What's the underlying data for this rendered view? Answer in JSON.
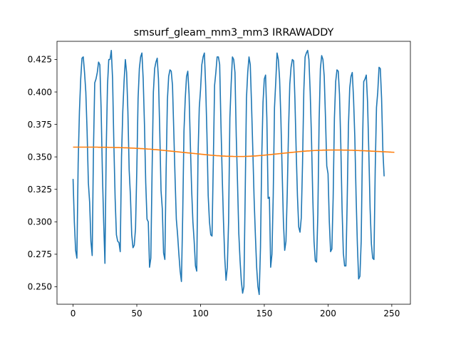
{
  "chart_data": {
    "type": "line",
    "title": "smsurf_gleam_mm3_mm3 IRRAWADDY",
    "xlabel": "",
    "ylabel": "",
    "xlim": [
      -12.6,
      264.6
    ],
    "ylim": [
      0.2365,
      0.439
    ],
    "grid": false,
    "x_ticks": [
      0,
      50,
      100,
      150,
      200,
      250
    ],
    "x_tick_labels": [
      "0",
      "50",
      "100",
      "150",
      "200",
      "250"
    ],
    "y_ticks": [
      0.25,
      0.275,
      0.3,
      0.325,
      0.35,
      0.375,
      0.4,
      0.425
    ],
    "y_tick_labels": [
      "0.250",
      "0.275",
      "0.300",
      "0.325",
      "0.350",
      "0.375",
      "0.400",
      "0.425"
    ],
    "colors": {
      "series_1": "#1f77b4",
      "series_2": "#ff7f0e"
    },
    "series": [
      {
        "values": [
          0.333,
          0.3,
          0.278,
          0.272,
          0.345,
          0.385,
          0.41,
          0.426,
          0.427,
          0.415,
          0.4,
          0.37,
          0.33,
          0.315,
          0.285,
          0.274,
          0.355,
          0.407,
          0.41,
          0.415,
          0.423,
          0.421,
          0.387,
          0.338,
          0.3,
          0.268,
          0.355,
          0.405,
          0.425,
          0.425,
          0.432,
          0.41,
          0.36,
          0.318,
          0.29,
          0.285,
          0.284,
          0.277,
          0.35,
          0.385,
          0.408,
          0.425,
          0.415,
          0.385,
          0.34,
          0.32,
          0.29,
          0.28,
          0.282,
          0.295,
          0.34,
          0.395,
          0.418,
          0.427,
          0.43,
          0.41,
          0.375,
          0.33,
          0.302,
          0.3,
          0.265,
          0.272,
          0.34,
          0.4,
          0.418,
          0.423,
          0.426,
          0.41,
          0.37,
          0.324,
          0.31,
          0.276,
          0.271,
          0.34,
          0.394,
          0.412,
          0.417,
          0.416,
          0.405,
          0.37,
          0.334,
          0.302,
          0.29,
          0.275,
          0.262,
          0.254,
          0.305,
          0.37,
          0.395,
          0.412,
          0.416,
          0.398,
          0.36,
          0.325,
          0.3,
          0.285,
          0.266,
          0.262,
          0.35,
          0.388,
          0.402,
          0.421,
          0.427,
          0.43,
          0.405,
          0.368,
          0.32,
          0.3,
          0.29,
          0.289,
          0.345,
          0.405,
          0.415,
          0.427,
          0.427,
          0.421,
          0.375,
          0.335,
          0.3,
          0.272,
          0.255,
          0.265,
          0.3,
          0.38,
          0.406,
          0.427,
          0.425,
          0.415,
          0.366,
          0.33,
          0.291,
          0.27,
          0.254,
          0.245,
          0.25,
          0.32,
          0.395,
          0.415,
          0.427,
          0.421,
          0.39,
          0.355,
          0.318,
          0.29,
          0.265,
          0.25,
          0.244,
          0.28,
          0.35,
          0.392,
          0.41,
          0.413,
          0.38,
          0.318,
          0.319,
          0.265,
          0.275,
          0.32,
          0.388,
          0.408,
          0.43,
          0.425,
          0.41,
          0.38,
          0.339,
          0.3,
          0.278,
          0.285,
          0.322,
          0.37,
          0.406,
          0.419,
          0.425,
          0.424,
          0.395,
          0.355,
          0.32,
          0.296,
          0.292,
          0.303,
          0.345,
          0.401,
          0.427,
          0.43,
          0.432,
          0.425,
          0.4,
          0.365,
          0.32,
          0.285,
          0.27,
          0.269,
          0.306,
          0.378,
          0.418,
          0.428,
          0.425,
          0.412,
          0.38,
          0.343,
          0.337,
          0.3,
          0.277,
          0.279,
          0.318,
          0.38,
          0.408,
          0.417,
          0.416,
          0.398,
          0.36,
          0.31,
          0.276,
          0.266,
          0.266,
          0.315,
          0.374,
          0.403,
          0.412,
          0.415,
          0.395,
          0.365,
          0.32,
          0.283,
          0.256,
          0.258,
          0.285,
          0.357,
          0.408,
          0.41,
          0.413,
          0.392,
          0.353,
          0.31,
          0.283,
          0.272,
          0.271,
          0.34,
          0.388,
          0.4,
          0.419,
          0.418,
          0.395,
          0.355,
          0.335
        ]
      },
      {
        "values": [
          0.3575,
          0.3575,
          0.3575,
          0.3575,
          0.3575,
          0.3575,
          0.3575,
          0.3575,
          0.3575,
          0.3575,
          0.3575,
          0.3575,
          0.3575,
          0.3575,
          0.3575,
          0.3575,
          0.3575,
          0.3575,
          0.3575,
          0.3575,
          0.3574,
          0.3574,
          0.3574,
          0.3574,
          0.3574,
          0.3574,
          0.3574,
          0.3574,
          0.3573,
          0.3573,
          0.3573,
          0.3573,
          0.3573,
          0.3572,
          0.3572,
          0.3572,
          0.3572,
          0.3571,
          0.3571,
          0.3571,
          0.357,
          0.357,
          0.357,
          0.3569,
          0.3569,
          0.3568,
          0.3568,
          0.3567,
          0.3567,
          0.3566,
          0.3566,
          0.3565,
          0.3565,
          0.3564,
          0.3564,
          0.3563,
          0.3562,
          0.3562,
          0.3561,
          0.356,
          0.356,
          0.3559,
          0.3558,
          0.3557,
          0.3556,
          0.3556,
          0.3555,
          0.3554,
          0.3553,
          0.3552,
          0.3551,
          0.355,
          0.3549,
          0.3548,
          0.3547,
          0.3546,
          0.3545,
          0.3544,
          0.3543,
          0.3542,
          0.3541,
          0.354,
          0.3539,
          0.3538,
          0.3537,
          0.3536,
          0.3535,
          0.3534,
          0.3533,
          0.3532,
          0.3531,
          0.353,
          0.3529,
          0.3528,
          0.3527,
          0.3526,
          0.3525,
          0.3524,
          0.3523,
          0.3522,
          0.3521,
          0.352,
          0.3519,
          0.3518,
          0.3517,
          0.3516,
          0.3515,
          0.3514,
          0.3513,
          0.3512,
          0.3512,
          0.3511,
          0.351,
          0.3509,
          0.3509,
          0.3508,
          0.3507,
          0.3507,
          0.3506,
          0.3506,
          0.3505,
          0.3505,
          0.3505,
          0.3504,
          0.3504,
          0.3504,
          0.3503,
          0.3503,
          0.3503,
          0.3503,
          0.3503,
          0.3503,
          0.3503,
          0.3503,
          0.3503,
          0.3504,
          0.3504,
          0.3504,
          0.3505,
          0.3505,
          0.3506,
          0.3506,
          0.3507,
          0.3507,
          0.3508,
          0.3509,
          0.351,
          0.351,
          0.3511,
          0.3512,
          0.3513,
          0.3514,
          0.3515,
          0.3516,
          0.3517,
          0.3518,
          0.3519,
          0.352,
          0.3521,
          0.3522,
          0.3523,
          0.3524,
          0.3525,
          0.3526,
          0.3527,
          0.3528,
          0.3529,
          0.353,
          0.3531,
          0.3532,
          0.3533,
          0.3534,
          0.3535,
          0.3536,
          0.3537,
          0.3538,
          0.3539,
          0.354,
          0.3541,
          0.3542,
          0.3543,
          0.3544,
          0.3544,
          0.3545,
          0.3546,
          0.3546,
          0.3547,
          0.3548,
          0.3548,
          0.3549,
          0.3549,
          0.355,
          0.355,
          0.3551,
          0.3551,
          0.3551,
          0.3552,
          0.3552,
          0.3552,
          0.3552,
          0.3553,
          0.3553,
          0.3553,
          0.3553,
          0.3553,
          0.3553,
          0.3553,
          0.3553,
          0.3553,
          0.3553,
          0.3553,
          0.3553,
          0.3552,
          0.3552,
          0.3552,
          0.3552,
          0.3552,
          0.3551,
          0.3551,
          0.3551,
          0.355,
          0.355,
          0.355,
          0.3549,
          0.3549,
          0.3548,
          0.3548,
          0.3548,
          0.3547,
          0.3547,
          0.3546,
          0.3546,
          0.3545,
          0.3545,
          0.3544,
          0.3544,
          0.3543,
          0.3543,
          0.3542,
          0.3542,
          0.3541,
          0.3541,
          0.354,
          0.354,
          0.3539,
          0.3539,
          0.3538,
          0.3538,
          0.3537,
          0.3537,
          0.3536,
          0.3536,
          0.3535
        ]
      }
    ]
  }
}
